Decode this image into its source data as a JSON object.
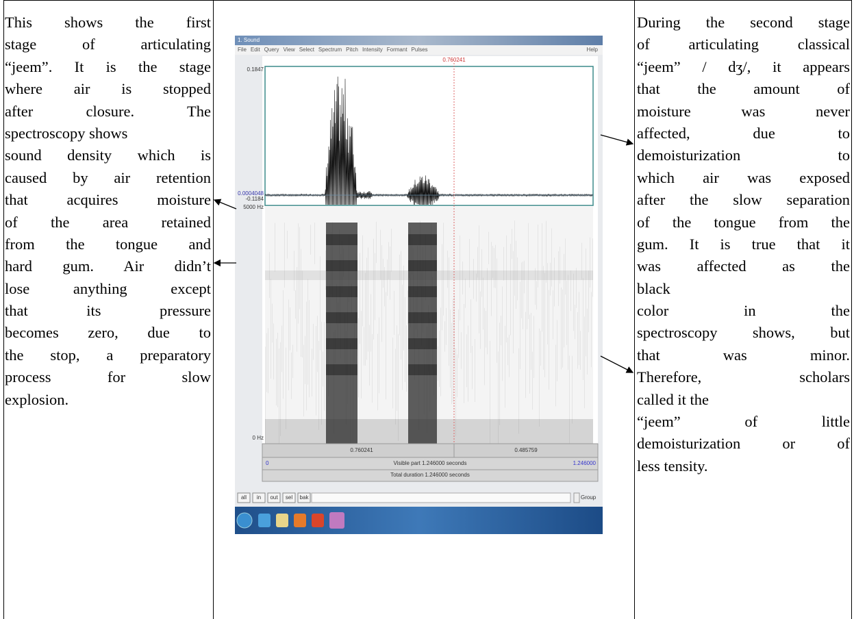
{
  "left_text": {
    "lines": [
      "This shows the first",
      "stage of articulating",
      "“jeem”. It is the stage",
      "where air is stopped",
      "after closure. The",
      "spectroscopy shows",
      "sound density which is",
      "caused by air retention",
      "that acquires moisture",
      "of the area retained",
      "from the tongue and",
      "hard gum. Air didn’t",
      "lose anything except",
      "that its pressure",
      "becomes zero, due to",
      "the stop, a preparatory",
      "process for slow",
      "explosion."
    ]
  },
  "figure": {
    "window_title": "1. Sound",
    "menu": [
      "File",
      "Edit",
      "Query",
      "View",
      "Select",
      "Spectrum",
      "Pitch",
      "Intensity",
      "Formant",
      "Pulses"
    ],
    "help": "Help",
    "cursor_time": "0.760241",
    "wave_max": "0.1847",
    "wave_mid": "0.0004048",
    "wave_min": "-0.1184",
    "freq_max": "5000 Hz",
    "freq_min": "0 Hz",
    "segment_left": "0.760241",
    "segment_right": "0.485759",
    "visible_start": "0",
    "visible_part": "Visible part 1.246000 seconds",
    "visible_end": "1.246000",
    "total_duration": "Total duration 1.246000 seconds",
    "buttons": [
      "all",
      "in",
      "out",
      "sel",
      "bak"
    ],
    "group": "Group"
  },
  "right_text": {
    "lines": [
      "During the second stage",
      "of articulating classical",
      "“jeem” / dʒ/, it appears",
      "that the amount of",
      "moisture was never",
      "affected, due to",
      "demoisturization to",
      "which air was exposed",
      "after the slow separation",
      "of the tongue from the",
      "gum. It is true that it",
      "was affected as the",
      "black",
      "color in the",
      "spectroscopy shows, but",
      "that was minor.",
      "Therefore, scholars",
      "called it the",
      "“jeem” of little",
      "demoisturization or of",
      "less tensity."
    ]
  }
}
